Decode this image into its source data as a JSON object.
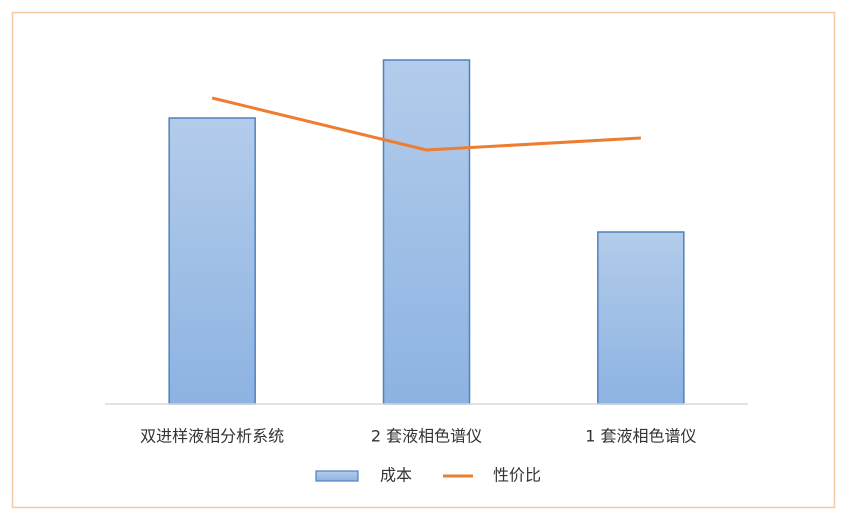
{
  "chart_data": {
    "type": "bar",
    "categories": [
      "双进样液相分析系统",
      "2 套液相色谱仪",
      "1 套液相色谱仪"
    ],
    "series": [
      {
        "name": "成本",
        "type": "bar",
        "color": "#8db3e2",
        "values": [
          286,
          344,
          172
        ]
      },
      {
        "name": "性价比",
        "type": "line",
        "color": "#ed7d31",
        "values": [
          306,
          254,
          266
        ]
      }
    ],
    "ylim": [
      0,
      360
    ],
    "legend": "bottom"
  }
}
